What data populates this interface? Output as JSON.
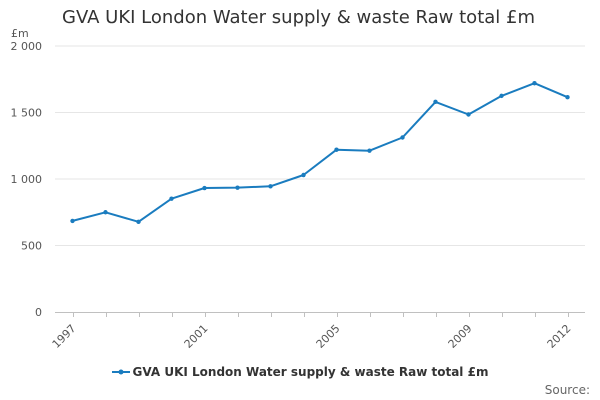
{
  "chart_data": {
    "type": "line",
    "title": "GVA UKI London Water supply & waste Raw total £m",
    "ylabel": "£m",
    "xlabel": "",
    "ylim": [
      0,
      2000
    ],
    "y_ticks": [
      "0",
      "500",
      "1 000",
      "1 500",
      "2 000"
    ],
    "y_tick_values": [
      0,
      500,
      1000,
      1500,
      2000
    ],
    "x_tick_labels": [
      "1997",
      "2001",
      "2005",
      "2009",
      "2012"
    ],
    "grid": true,
    "legend_position": "bottom",
    "series": [
      {
        "name": "GVA UKI London Water supply & waste Raw total £m",
        "color": "#1a7cbf",
        "x": [
          1997,
          1998,
          1999,
          2000,
          2001,
          2002,
          2003,
          2004,
          2005,
          2006,
          2007,
          2008,
          2009,
          2010,
          2011,
          2012
        ],
        "values": [
          685,
          750,
          678,
          852,
          932,
          935,
          945,
          1030,
          1220,
          1213,
          1312,
          1580,
          1485,
          1625,
          1720,
          1615
        ]
      }
    ]
  },
  "source": "Source:"
}
